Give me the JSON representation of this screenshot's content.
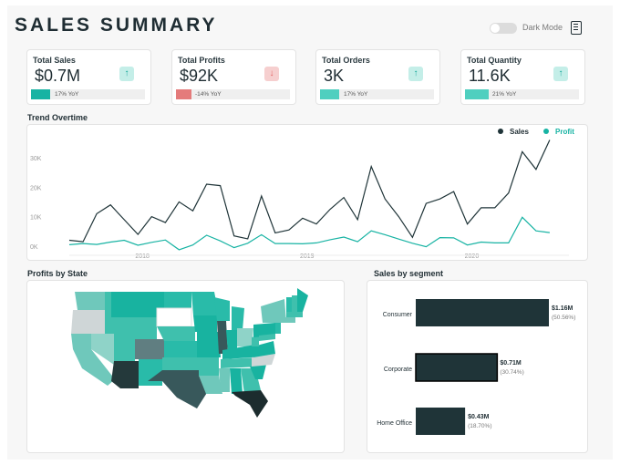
{
  "header": {
    "title": "SALES SUMMARY",
    "dark_mode_label": "Dark Mode",
    "dark_mode_on": false,
    "menu_icon": "document-menu-icon"
  },
  "colors": {
    "dark": "#1f3438",
    "teal": "#17b3a3",
    "teal_light": "#4fcfbf",
    "red": "#e47b7b",
    "up_bg": "#c4eee8",
    "down_bg": "#f6cfcf"
  },
  "kpis": [
    {
      "label": "Total Sales",
      "value": "$0.7M",
      "trend": "up",
      "yoy_text": "17% YoY",
      "yoy_pct": 17
    },
    {
      "label": "Total Profits",
      "value": "$92K",
      "trend": "down",
      "yoy_text": "-14% YoY",
      "yoy_pct": 14
    },
    {
      "label": "Total Orders",
      "value": "3K",
      "trend": "up",
      "yoy_text": "17% YoY",
      "yoy_pct": 17
    },
    {
      "label": "Total Quantity",
      "value": "11.6K",
      "trend": "up",
      "yoy_text": "21% YoY",
      "yoy_pct": 21
    }
  ],
  "trend": {
    "title": "Trend Overtime",
    "legend": [
      "Sales",
      "Profit"
    ],
    "y_ticks": [
      "0K",
      "10K",
      "20K",
      "30K"
    ],
    "x_ticks": [
      "2018",
      "2019",
      "2020"
    ]
  },
  "map": {
    "title": "Profits by State"
  },
  "segments": {
    "title": "Sales by segment"
  },
  "chart_data": [
    {
      "type": "line",
      "title": "Trend Overtime",
      "x": [
        "2017-11",
        "2017-12",
        "2018-01",
        "2018-02",
        "2018-03",
        "2018-04",
        "2018-05",
        "2018-06",
        "2018-07",
        "2018-08",
        "2018-09",
        "2018-10",
        "2018-11",
        "2018-12",
        "2019-01",
        "2019-02",
        "2019-03",
        "2019-04",
        "2019-05",
        "2019-06",
        "2019-07",
        "2019-08",
        "2019-09",
        "2019-10",
        "2019-11",
        "2019-12",
        "2020-01",
        "2020-02",
        "2020-03",
        "2020-04",
        "2020-05",
        "2020-06",
        "2020-07",
        "2020-08",
        "2020-09",
        "2020-10",
        "2020-11"
      ],
      "x_ticks": [
        "2018",
        "2019",
        "2020"
      ],
      "y_ticks": [
        "0K",
        "10K",
        "20K",
        "30K"
      ],
      "ylim": [
        0,
        38000
      ],
      "legend_position": "top-right",
      "series": [
        {
          "name": "Sales",
          "color": "#1f3438",
          "values": [
            2000,
            1500,
            11000,
            14000,
            9000,
            4000,
            10000,
            8000,
            15000,
            12000,
            21000,
            20500,
            3500,
            2500,
            17000,
            4500,
            5500,
            9500,
            7500,
            12500,
            16500,
            9000,
            27000,
            16000,
            10000,
            3000,
            14500,
            16000,
            18500,
            7500,
            13000,
            13000,
            18000,
            32000,
            26000,
            36000,
            0
          ]
        },
        {
          "name": "Profit",
          "color": "#17b3a3",
          "values": [
            500,
            900,
            600,
            1400,
            2000,
            300,
            1300,
            2100,
            -1200,
            400,
            3700,
            1800,
            -500,
            1000,
            3900,
            900,
            900,
            800,
            1100,
            2200,
            3100,
            1500,
            5200,
            3900,
            2400,
            1000,
            -200,
            2900,
            2800,
            400,
            1400,
            1100,
            1100,
            9800,
            5200,
            4600,
            0
          ]
        }
      ]
    },
    {
      "type": "bar",
      "title": "Sales by segment",
      "categories": [
        "Consumer",
        "Corporate",
        "Home Office"
      ],
      "values": [
        1.16,
        0.71,
        0.43
      ],
      "value_labels": [
        "$1.16M",
        "$0.71M",
        "$0.43M"
      ],
      "share_labels": [
        "(50.56%)",
        "(30.74%)",
        "(18.70%)"
      ],
      "color": "#1f3438"
    }
  ]
}
